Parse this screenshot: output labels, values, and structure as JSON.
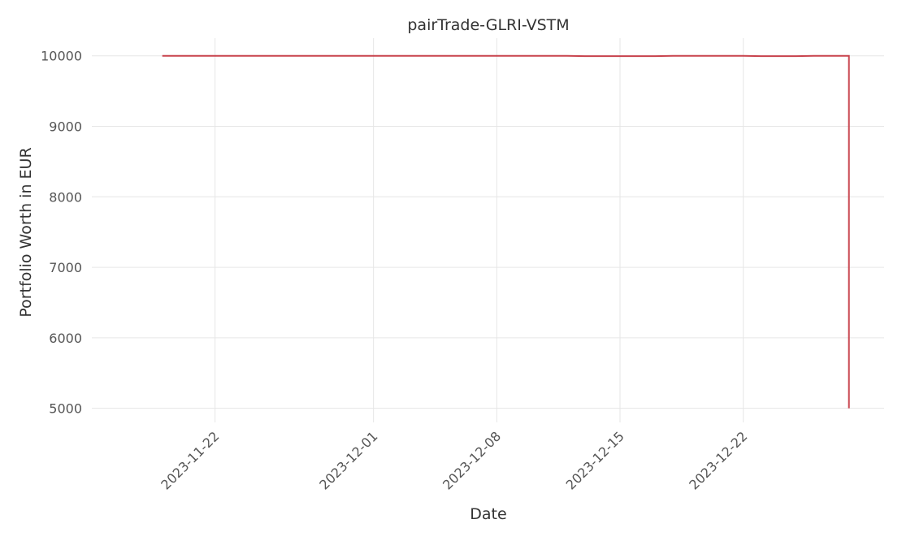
{
  "chart_data": {
    "type": "line",
    "title": "pairTrade-GLRI-VSTM",
    "xlabel": "Date",
    "ylabel": "Portfolio Worth in EUR",
    "x_ticks": [
      "2023-11-22",
      "2023-12-01",
      "2023-12-08",
      "2023-12-15",
      "2023-12-22"
    ],
    "y_ticks": [
      5000,
      6000,
      7000,
      8000,
      9000,
      10000
    ],
    "xlim": [
      "2023-11-15",
      "2023-12-30"
    ],
    "ylim": [
      4800,
      10250
    ],
    "grid": true,
    "line_color": "#c8434d",
    "series": [
      {
        "points": [
          {
            "x": "2023-11-19",
            "y": 10000
          },
          {
            "x": "2023-11-22",
            "y": 10000
          },
          {
            "x": "2023-11-25",
            "y": 10000
          },
          {
            "x": "2023-11-28",
            "y": 10000
          },
          {
            "x": "2023-12-01",
            "y": 10000
          },
          {
            "x": "2023-12-04",
            "y": 10000
          },
          {
            "x": "2023-12-07",
            "y": 10000
          },
          {
            "x": "2023-12-10",
            "y": 10000
          },
          {
            "x": "2023-12-12",
            "y": 10000
          },
          {
            "x": "2023-12-13",
            "y": 9995
          },
          {
            "x": "2023-12-14",
            "y": 9995
          },
          {
            "x": "2023-12-17",
            "y": 9995
          },
          {
            "x": "2023-12-18",
            "y": 10000
          },
          {
            "x": "2023-12-22",
            "y": 10000
          },
          {
            "x": "2023-12-23",
            "y": 9995
          },
          {
            "x": "2023-12-25",
            "y": 9995
          },
          {
            "x": "2023-12-26",
            "y": 10000
          },
          {
            "x": "2023-12-28",
            "y": 10000
          },
          {
            "x": "2023-12-28",
            "y": 5000
          }
        ]
      }
    ]
  }
}
